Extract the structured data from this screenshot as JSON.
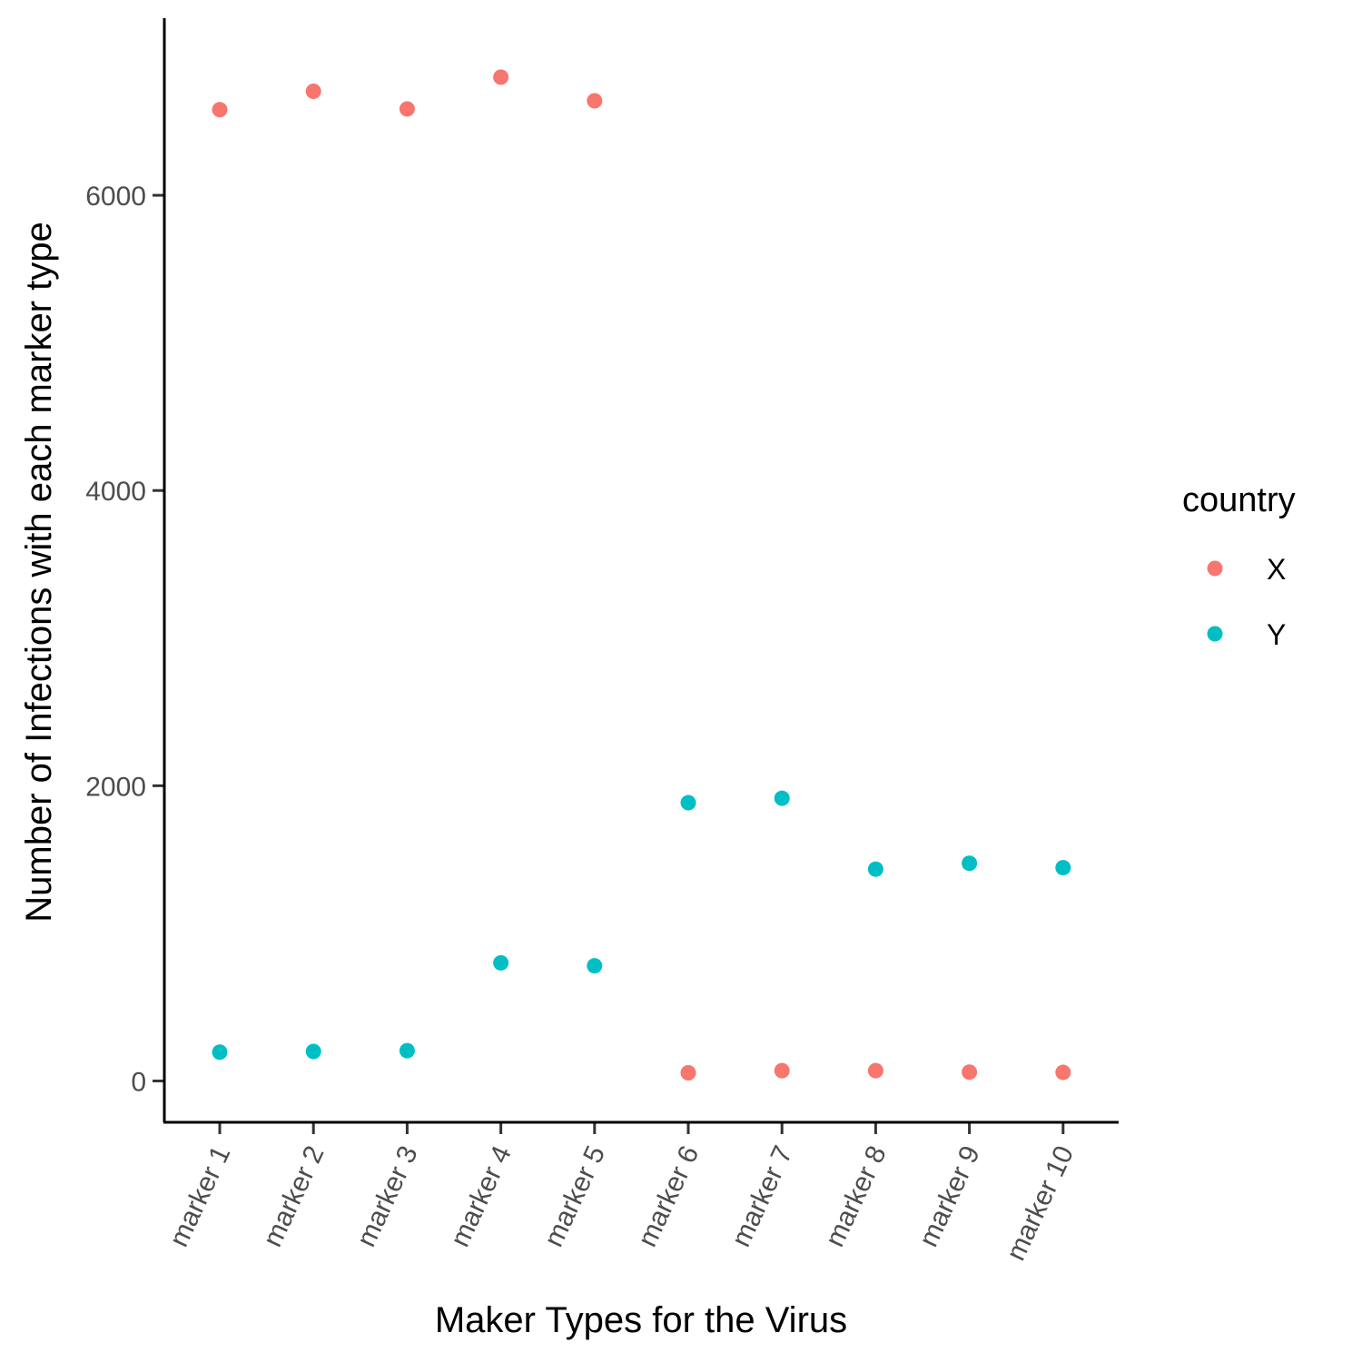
{
  "chart_data": {
    "type": "scatter",
    "categories": [
      "marker 1",
      "marker 2",
      "marker 3",
      "marker 4",
      "marker 5",
      "marker 6",
      "marker 7",
      "marker 8",
      "marker 9",
      "marker 10"
    ],
    "series": [
      {
        "name": "X",
        "color": "#F8766D",
        "values": [
          6580,
          6705,
          6585,
          6800,
          6640,
          55,
          70,
          70,
          60,
          58
        ]
      },
      {
        "name": "Y",
        "color": "#00BFC4",
        "values": [
          195,
          200,
          205,
          800,
          780,
          1885,
          1915,
          1435,
          1475,
          1445
        ]
      }
    ],
    "xlabel": "Maker Types for the Virus",
    "ylabel": "Number of Infections with each marker type",
    "yticks": [
      0,
      2000,
      4000,
      6000
    ],
    "ylim": [
      -280,
      7200
    ],
    "legend": {
      "title": "country",
      "position": "right"
    },
    "grid": false
  }
}
